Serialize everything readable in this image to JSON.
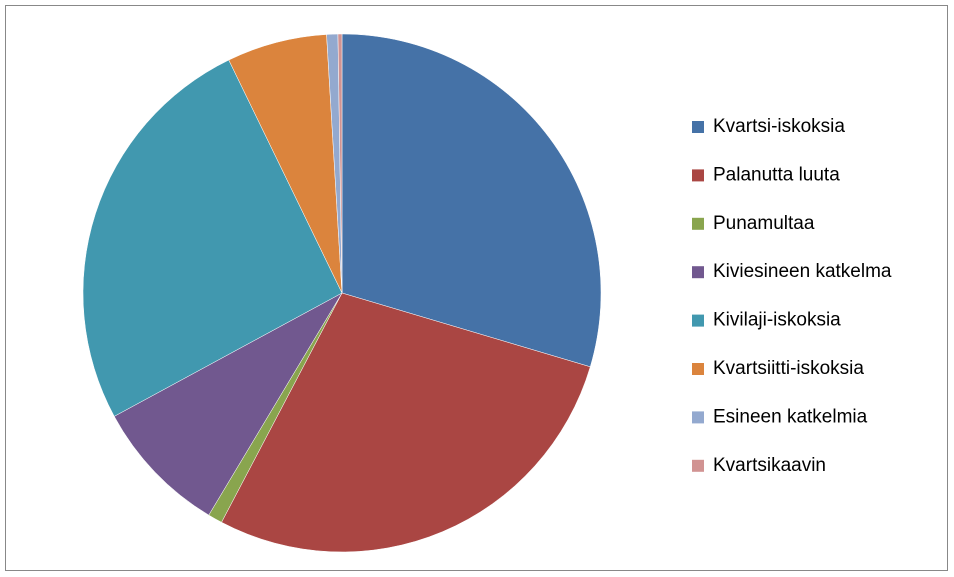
{
  "chart_data": {
    "type": "pie",
    "categories": [
      "Kvartsi-iskoksia",
      "Palanutta luuta",
      "Punamultaa",
      "Kiviesineen katkelma",
      "Kivilaji-iskoksia",
      "Kvartsiitti-iskoksia",
      "Esineen katkelmia",
      "Kvartsikaavin"
    ],
    "values": [
      29.6,
      28.1,
      0.9,
      8.5,
      25.7,
      6.25,
      0.7,
      0.25
    ],
    "colors": [
      "#4572a7",
      "#aa4643",
      "#89a54e",
      "#71588f",
      "#4198af",
      "#db843d",
      "#93a9cf",
      "#d19392"
    ],
    "legend": "right"
  }
}
